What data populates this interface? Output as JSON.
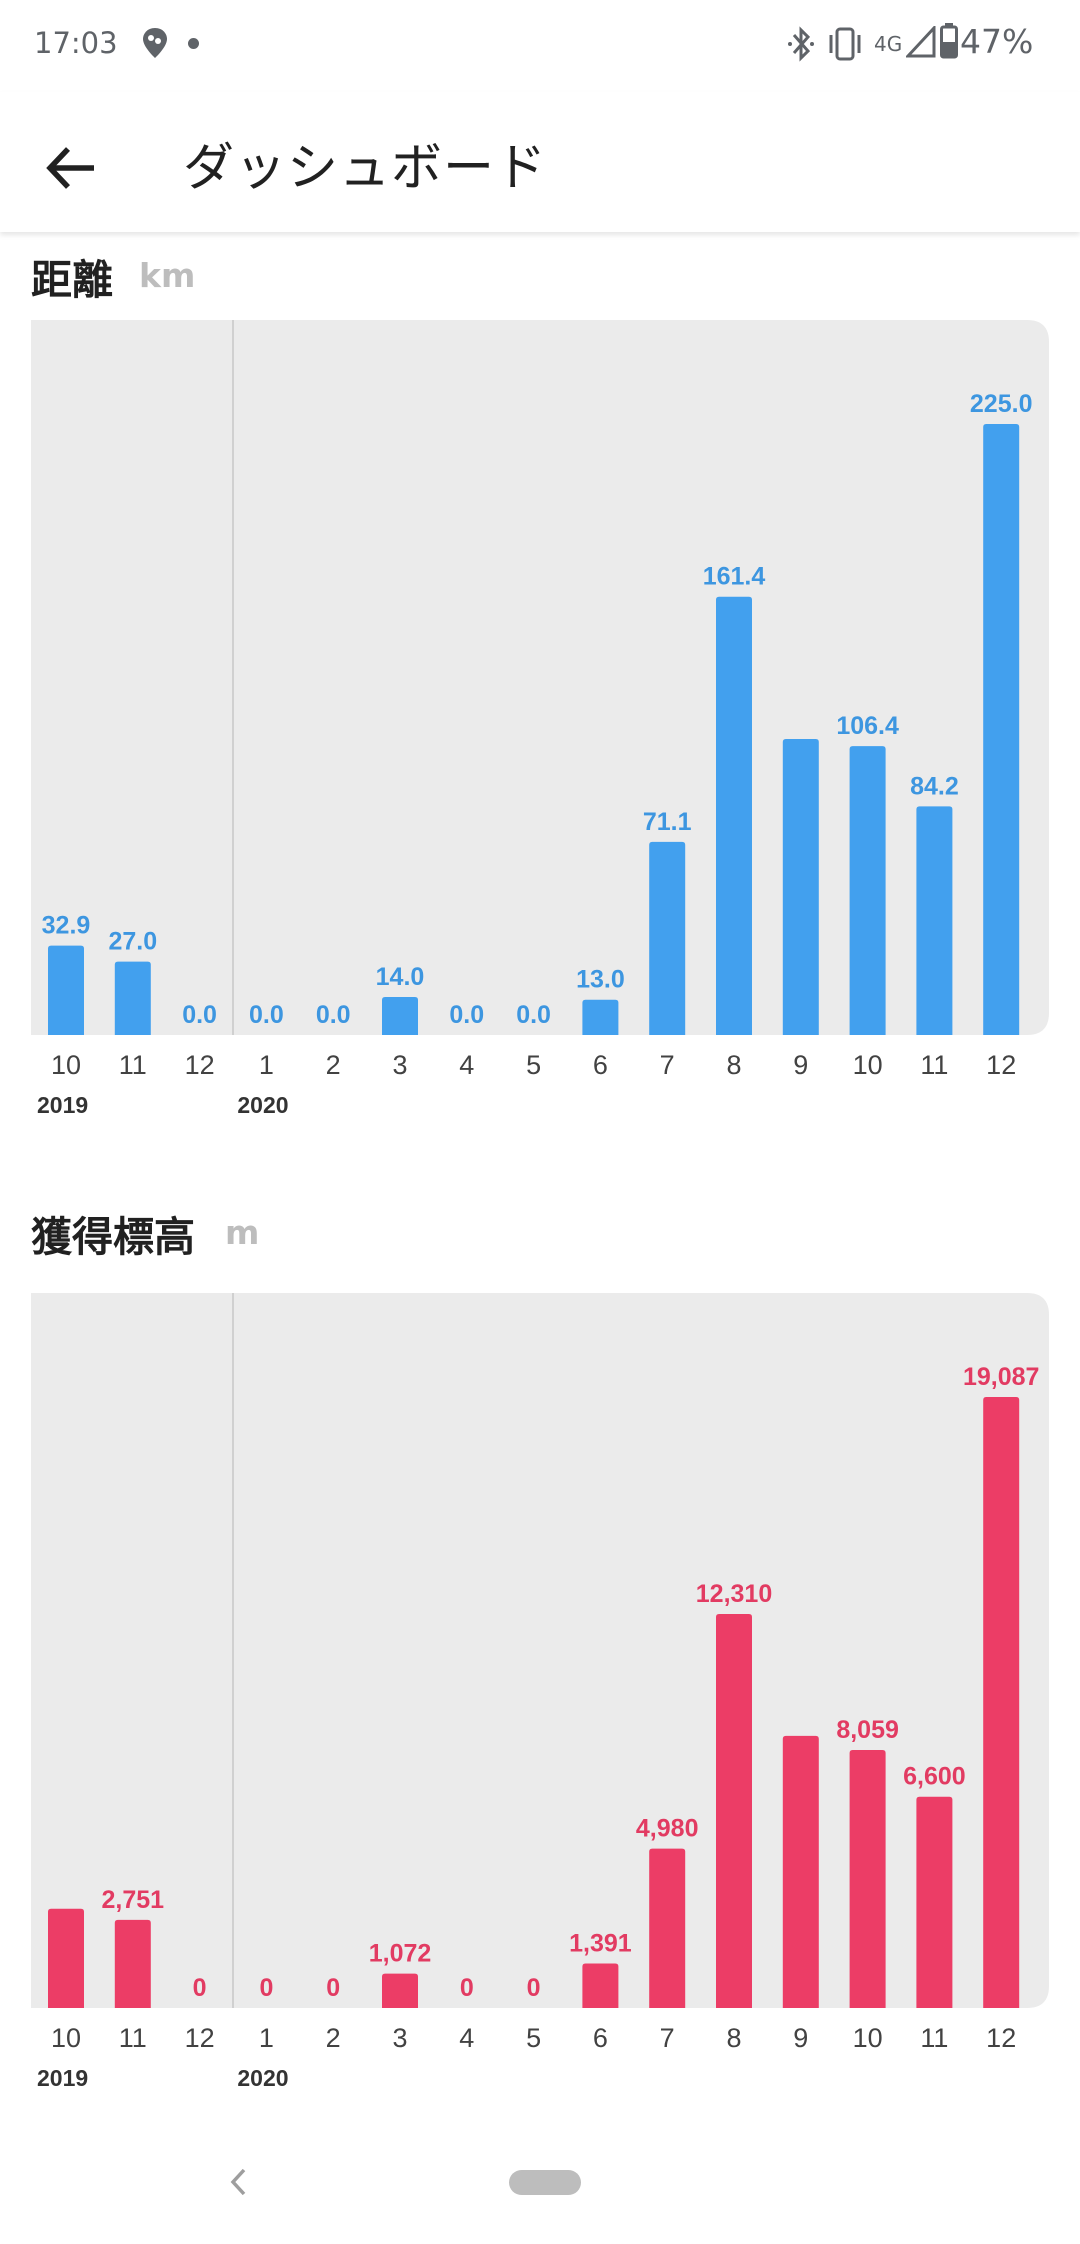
{
  "status_bar": {
    "time": "17:03",
    "network": "4G",
    "battery": "47%",
    "icons": [
      "footsteps-location-icon",
      "notification-dot-icon",
      "bluetooth-icon",
      "vibrate-icon",
      "signal-icon",
      "battery-icon"
    ]
  },
  "app_bar": {
    "back_icon": "arrow-back-icon",
    "title": "ダッシュボード"
  },
  "distance": {
    "title": "距離",
    "unit": "km"
  },
  "elevation": {
    "title": "獲得標高",
    "unit": "m"
  },
  "colors": {
    "distance_bar": "#42a0ee",
    "distance_label": "#3d96e0",
    "elevation_bar": "#ec3d66",
    "elevation_label": "#e23b62",
    "chart_background": "#ebebeb"
  },
  "nav_bar": {
    "back_icon": "chevron-left-icon",
    "home_icon": "home-pill-icon"
  },
  "chart_data": [
    {
      "type": "bar",
      "id": "distance",
      "categories": [
        "10",
        "11",
        "12",
        "1",
        "2",
        "3",
        "4",
        "5",
        "6",
        "7",
        "8",
        "9",
        "10",
        "11",
        "12"
      ],
      "year_labels": [
        {
          "label": "2019",
          "start_index": 0
        },
        {
          "label": "2020",
          "start_index": 3
        }
      ],
      "values": [
        32.9,
        27.0,
        0.0,
        0.0,
        0.0,
        14.0,
        0.0,
        0.0,
        13.0,
        71.1,
        161.4,
        109.0,
        106.4,
        84.2,
        225.0
      ],
      "labels": [
        "32.9",
        "27.0",
        "0.0",
        "0.0",
        "0.0",
        "14.0",
        "0.0",
        "0.0",
        "13.0",
        "71.1",
        "161.4",
        "",
        "106.4",
        "84.2",
        "225.0"
      ],
      "ylim": [
        0,
        225.0
      ],
      "grid": false
    },
    {
      "type": "bar",
      "id": "elevation",
      "categories": [
        "10",
        "11",
        "12",
        "1",
        "2",
        "3",
        "4",
        "5",
        "6",
        "7",
        "8",
        "9",
        "10",
        "11",
        "12"
      ],
      "year_labels": [
        {
          "label": "2019",
          "start_index": 0
        },
        {
          "label": "2020",
          "start_index": 3
        }
      ],
      "values": [
        3100,
        2751,
        0,
        0,
        0,
        1072,
        0,
        0,
        1391,
        4980,
        12310,
        8500,
        8059,
        6600,
        19087
      ],
      "labels": [
        "",
        "2,751",
        "0",
        "0",
        "0",
        "1,072",
        "0",
        "0",
        "1,391",
        "4,980",
        "12,310",
        "",
        "8,059",
        "6,600",
        "19,087"
      ],
      "ylim": [
        0,
        19087
      ],
      "grid": false
    }
  ]
}
